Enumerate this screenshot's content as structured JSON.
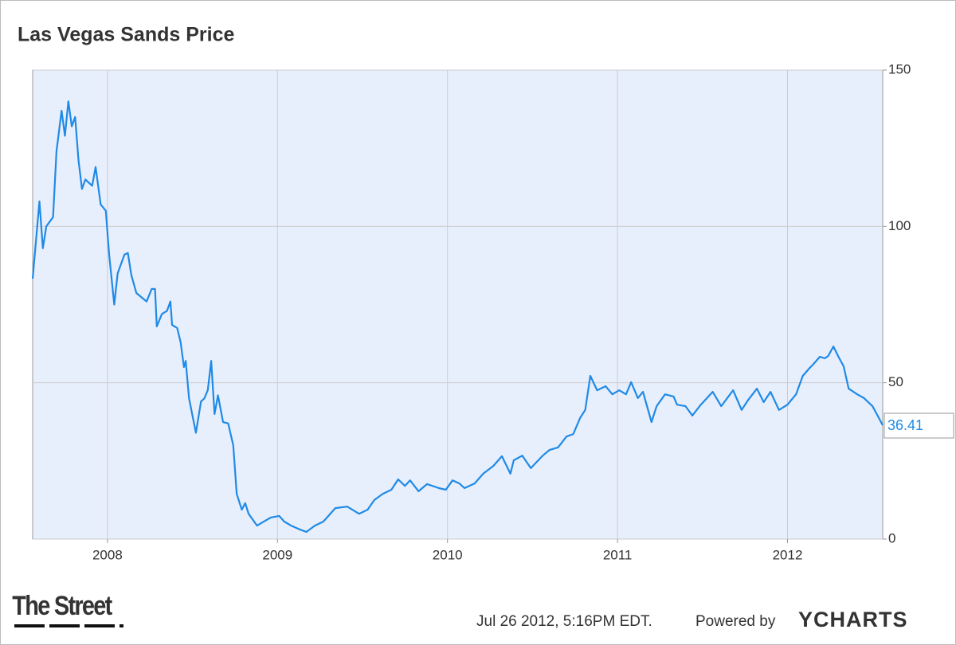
{
  "chart_data": {
    "type": "line",
    "title": "Las Vegas Sands Price",
    "color": "#1f8ae6",
    "grid": true,
    "x": [
      2007.56,
      2007.6,
      2007.62,
      2007.64,
      2007.68,
      2007.7,
      2007.73,
      2007.75,
      2007.77,
      2007.79,
      2007.81,
      2007.83,
      2007.85,
      2007.87,
      2007.91,
      2007.93,
      2007.96,
      2007.99,
      2008.01,
      2008.04,
      2008.06,
      2008.1,
      2008.12,
      2008.14,
      2008.17,
      2008.23,
      2008.26,
      2008.28,
      2008.29,
      2008.32,
      2008.35,
      2008.37,
      2008.38,
      2008.41,
      2008.43,
      2008.45,
      2008.46,
      2008.48,
      2008.52,
      2008.55,
      2008.57,
      2008.59,
      2008.61,
      2008.63,
      2008.65,
      2008.68,
      2008.71,
      2008.74,
      2008.76,
      2008.79,
      2008.81,
      2008.83,
      2008.88,
      2008.91,
      2008.96,
      2009.01,
      2009.04,
      2009.08,
      2009.13,
      2009.17,
      2009.22,
      2009.27,
      2009.34,
      2009.41,
      2009.48,
      2009.53,
      2009.57,
      2009.62,
      2009.67,
      2009.71,
      2009.75,
      2009.78,
      2009.83,
      2009.88,
      2009.95,
      2009.99,
      2010.03,
      2010.07,
      2010.1,
      2010.16,
      2010.21,
      2010.27,
      2010.32,
      2010.37,
      2010.39,
      2010.44,
      2010.49,
      2010.56,
      2010.6,
      2010.65,
      2010.7,
      2010.74,
      2010.78,
      2010.81,
      2010.84,
      2010.88,
      2010.93,
      2010.97,
      2011.01,
      2011.05,
      2011.08,
      2011.12,
      2011.15,
      2011.2,
      2011.23,
      2011.28,
      2011.33,
      2011.35,
      2011.4,
      2011.44,
      2011.49,
      2011.56,
      2011.61,
      2011.68,
      2011.73,
      2011.77,
      2011.82,
      2011.86,
      2011.9,
      2011.95,
      2012.0,
      2012.05,
      2012.09,
      2012.13,
      2012.15,
      2012.19,
      2012.22,
      2012.24,
      2012.27,
      2012.3,
      2012.33,
      2012.36,
      2012.41,
      2012.45,
      2012.5,
      2012.53,
      2012.56
    ],
    "values": [
      83.3,
      108,
      93,
      100,
      103,
      124,
      137,
      129,
      140,
      132,
      135,
      121,
      112,
      115,
      113,
      119,
      107,
      105,
      91,
      75,
      85,
      91,
      91.5,
      84.5,
      78.7,
      76,
      80,
      80,
      68,
      72,
      73,
      76,
      68.5,
      67.5,
      63,
      55,
      57,
      45,
      34,
      44,
      45,
      47.6,
      57,
      40,
      46,
      37.4,
      37,
      30,
      14.5,
      9.4,
      11.5,
      8.1,
      4.3,
      5.3,
      6.9,
      7.4,
      5.6,
      4.3,
      3.1,
      2.3,
      4.3,
      5.6,
      9.9,
      10.4,
      8.1,
      9.4,
      12.5,
      14.5,
      15.8,
      19.1,
      17,
      18.8,
      15.3,
      17.6,
      16.3,
      15.8,
      18.8,
      17.8,
      16.3,
      17.8,
      20.9,
      23.4,
      26.5,
      20.9,
      25.2,
      26.7,
      22.7,
      26.7,
      28.5,
      29.3,
      32.8,
      33.6,
      38.7,
      41.3,
      52.2,
      47.6,
      48.9,
      46.3,
      47.6,
      46.3,
      50.2,
      45.1,
      47.1,
      37.4,
      42.5,
      46.3,
      45.6,
      43,
      42.5,
      39.5,
      43,
      47.1,
      42.5,
      47.6,
      41.3,
      44.6,
      48.1,
      43.8,
      47.1,
      41.3,
      43,
      46.3,
      52.2,
      54.7,
      55.8,
      58.3,
      57.8,
      58.6,
      61.6,
      58.3,
      55.3,
      48.1,
      46.3,
      45.1,
      42.5,
      39.5,
      36.41
    ],
    "xlim": [
      2007.56,
      2012.56
    ],
    "xticks": [
      2008,
      2009,
      2010,
      2011,
      2012
    ],
    "ylim": [
      0,
      150
    ],
    "yticks": [
      0,
      50,
      100,
      150
    ]
  },
  "footer": {
    "logo": "The Street",
    "timestamp": "Jul 26 2012, 5:16PM EDT.",
    "powered_by": "Powered by",
    "brand": "YCHARTS"
  }
}
